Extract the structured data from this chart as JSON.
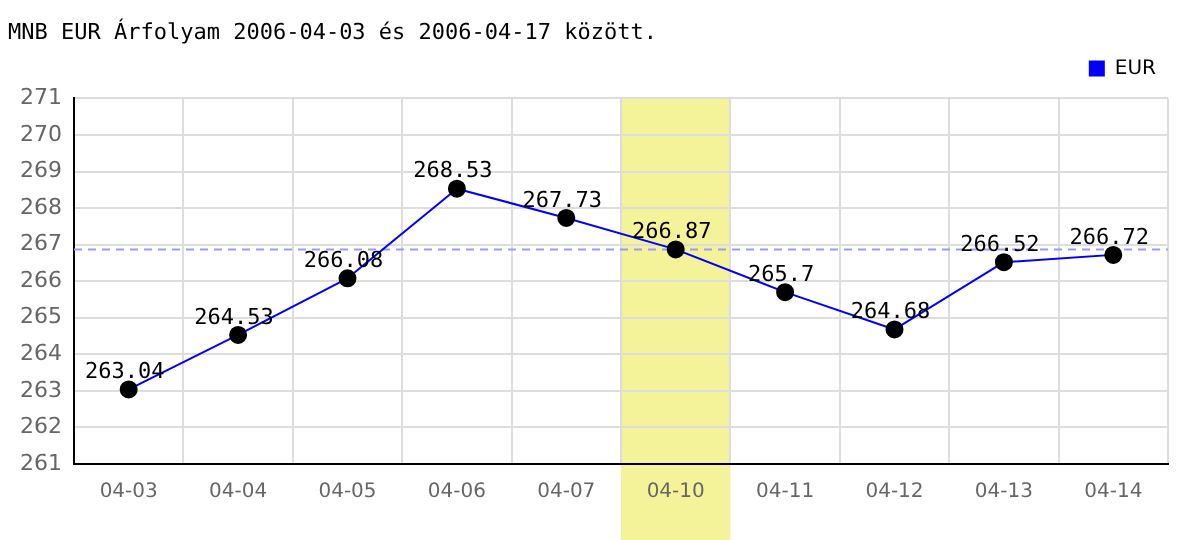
{
  "chart_data": {
    "type": "line",
    "title": "MNB EUR Árfolyam 2006-04-03 és 2006-04-17 között.",
    "categories": [
      "04-03",
      "04-04",
      "04-05",
      "04-06",
      "04-07",
      "04-10",
      "04-11",
      "04-12",
      "04-13",
      "04-14"
    ],
    "series": [
      {
        "name": "EUR",
        "color": "#0000ff",
        "values": [
          263.04,
          264.53,
          266.08,
          268.53,
          267.73,
          266.87,
          265.7,
          264.68,
          266.52,
          266.72
        ]
      }
    ],
    "ylim": [
      261,
      271
    ],
    "yticks": [
      261,
      262,
      263,
      264,
      265,
      266,
      267,
      268,
      269,
      270,
      271
    ],
    "ref_lines": [
      {
        "axis": "y",
        "value": 266.87,
        "color": "#9999ff",
        "line_style": "dashed"
      }
    ],
    "bands": [
      {
        "axis": "x",
        "from": "04-10",
        "to": "04-10",
        "color": "#f5f39a"
      }
    ],
    "grid": true,
    "legend": "top right",
    "marker": "circle",
    "line_style": "solid",
    "data_labels": true
  }
}
